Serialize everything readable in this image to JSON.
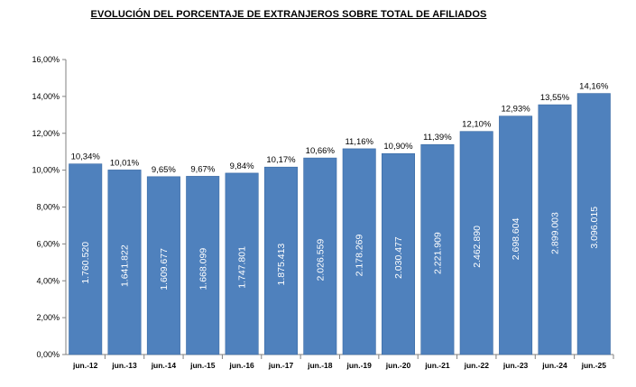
{
  "chart_data": {
    "type": "bar",
    "title": "EVOLUCIÓN DEL PORCENTAJE DE EXTRANJEROS SOBRE TOTAL DE AFILIADOS",
    "xlabel": "",
    "ylabel": "",
    "ylim": [
      0,
      16
    ],
    "grid": false,
    "categories": [
      "jun.-12",
      "jun.-13",
      "jun.-14",
      "jun.-15",
      "jun.-16",
      "jun.-17",
      "jun.-18",
      "jun.-19",
      "jun.-20",
      "jun.-21",
      "jun.-22",
      "jun.-23",
      "jun.-24",
      "jun.-25"
    ],
    "values": [
      10.34,
      10.01,
      9.65,
      9.67,
      9.84,
      10.17,
      10.66,
      11.16,
      10.9,
      11.39,
      12.1,
      12.93,
      13.55,
      14.16
    ],
    "value_labels": [
      "10,34%",
      "10,01%",
      "9,65%",
      "9,67%",
      "9,84%",
      "10,17%",
      "10,66%",
      "11,16%",
      "10,90%",
      "11,39%",
      "12,10%",
      "12,93%",
      "13,55%",
      "14,16%"
    ],
    "bar_labels": [
      "1.760.520",
      "1.641.822",
      "1.609.677",
      "1.668.099",
      "1.747.801",
      "1.875.413",
      "2.026.559",
      "2.178.269",
      "2.030.477",
      "2.221.909",
      "2.462.890",
      "2.698.604",
      "2.899.003",
      "3.096.015"
    ],
    "yticks": [
      0,
      2,
      4,
      6,
      8,
      10,
      12,
      14,
      16
    ],
    "ytick_labels": [
      "0,00%",
      "2,00%",
      "4,00%",
      "6,00%",
      "8,00%",
      "10,00%",
      "12,00%",
      "14,00%",
      "16,00%"
    ],
    "bar_color": "#4f81bd"
  }
}
